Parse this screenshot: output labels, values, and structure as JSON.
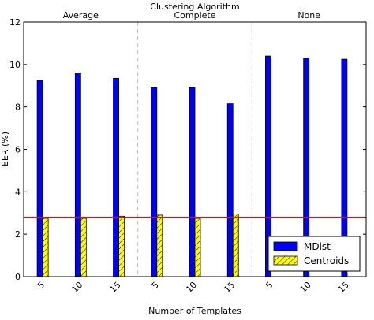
{
  "chart_data": {
    "type": "bar",
    "title": "Clustering Algorithm",
    "xlabel": "Number of Templates",
    "ylabel": "EER (%)",
    "ylim": [
      0,
      12
    ],
    "yticks": [
      "0",
      "2",
      "4",
      "6",
      "8",
      "10",
      "12"
    ],
    "groups": [
      {
        "name": "Average",
        "categories": [
          "5",
          "10",
          "15"
        ]
      },
      {
        "name": "Complete",
        "categories": [
          "5",
          "10",
          "15"
        ]
      },
      {
        "name": "None",
        "categories": [
          "5",
          "10",
          "15"
        ]
      }
    ],
    "series": [
      {
        "name": "MDist",
        "color": "#0000ff",
        "values": [
          9.25,
          9.6,
          9.35,
          8.9,
          8.9,
          8.15,
          10.4,
          10.3,
          10.25
        ]
      },
      {
        "name": "Centroids",
        "color": "#ffff00",
        "hatch": "diagonal",
        "values": [
          2.75,
          2.75,
          2.85,
          2.9,
          2.75,
          2.95,
          null,
          null,
          null
        ]
      }
    ],
    "reference_line": {
      "value": 2.8,
      "color": "#ff0000"
    },
    "group_separators": "dashed",
    "grid": false,
    "legend_position": "lower-right"
  }
}
